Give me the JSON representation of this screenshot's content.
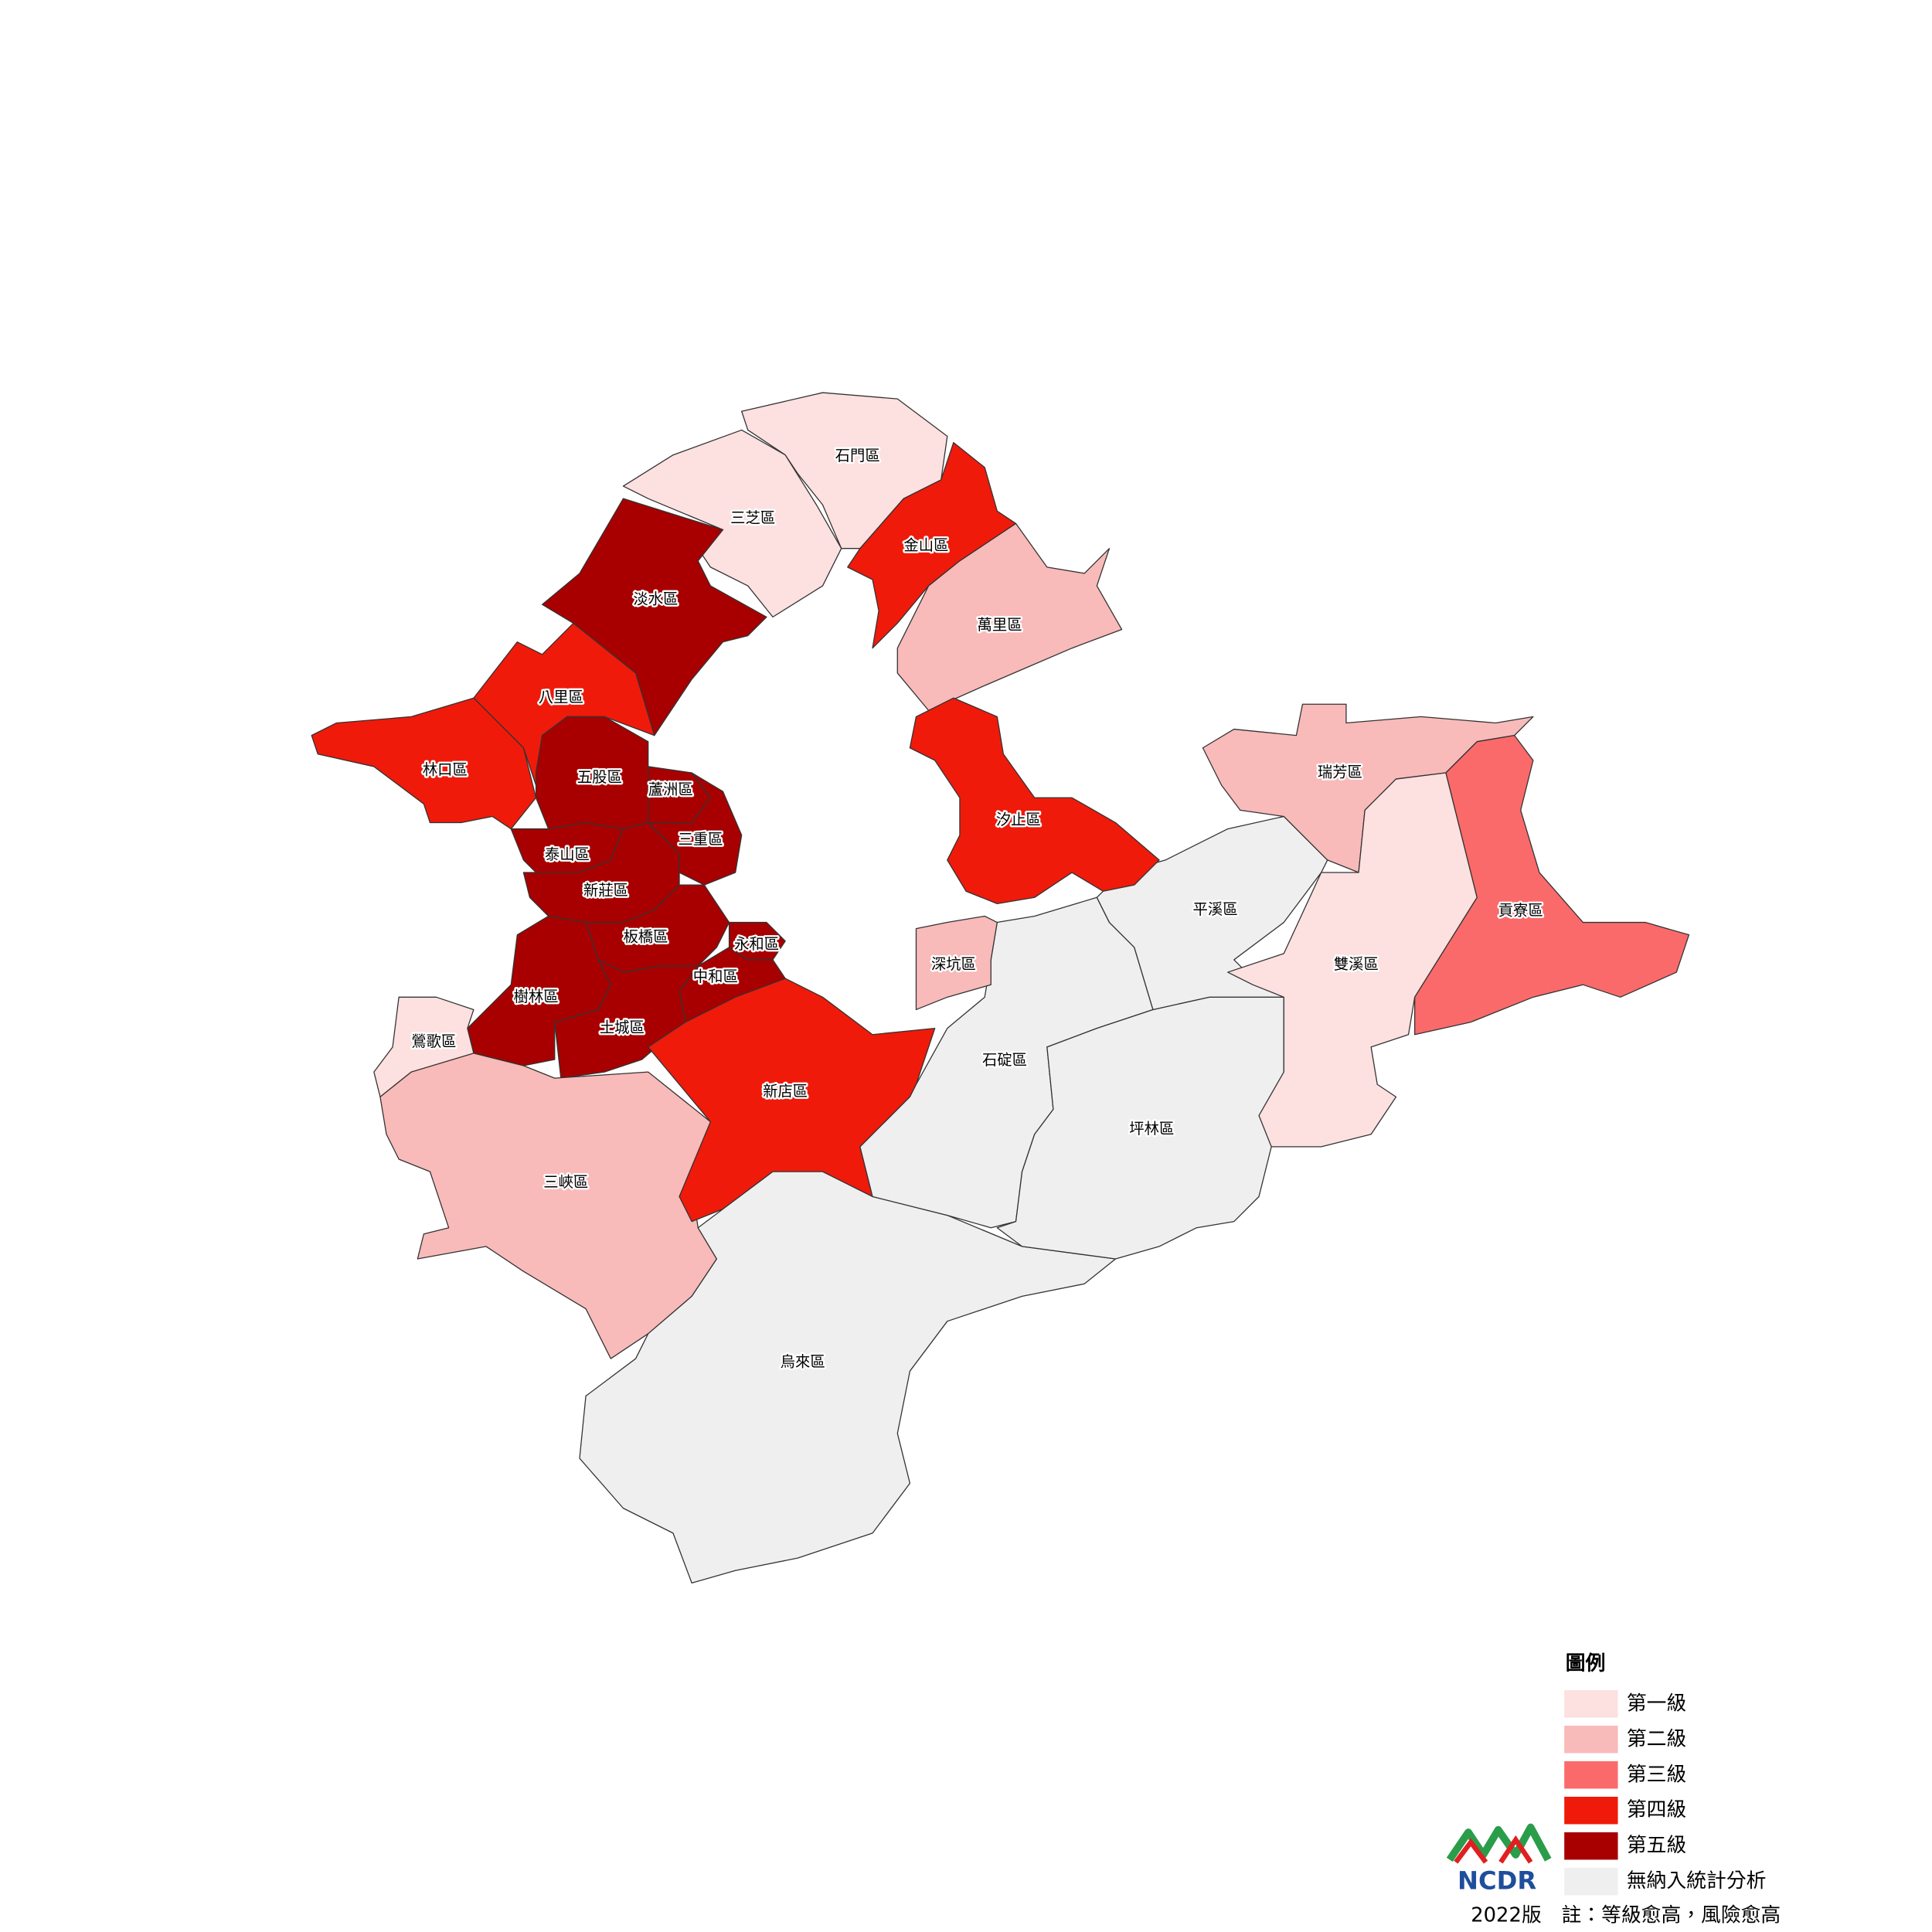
{
  "districts": [
    {
      "name": "石門區",
      "level": 1
    },
    {
      "name": "三芝區",
      "level": 1
    },
    {
      "name": "淡水區",
      "level": 5
    },
    {
      "name": "金山區",
      "level": 4
    },
    {
      "name": "萬里區",
      "level": 2
    },
    {
      "name": "八里區",
      "level": 4
    },
    {
      "name": "林口區",
      "level": 4
    },
    {
      "name": "五股區",
      "level": 5
    },
    {
      "name": "蘆洲區",
      "level": 5
    },
    {
      "name": "三重區",
      "level": 5
    },
    {
      "name": "泰山區",
      "level": 5
    },
    {
      "name": "新莊區",
      "level": 5
    },
    {
      "name": "板橋區",
      "level": 5
    },
    {
      "name": "永和區",
      "level": 5
    },
    {
      "name": "中和區",
      "level": 5
    },
    {
      "name": "樹林區",
      "level": 5
    },
    {
      "name": "土城區",
      "level": 5
    },
    {
      "name": "鶯歌區",
      "level": 1
    },
    {
      "name": "三峽區",
      "level": 2
    },
    {
      "name": "新店區",
      "level": 4
    },
    {
      "name": "烏來區",
      "level": null
    },
    {
      "name": "石碇區",
      "level": null
    },
    {
      "name": "深坑區",
      "level": 2
    },
    {
      "name": "坪林區",
      "level": null
    },
    {
      "name": "平溪區",
      "level": null
    },
    {
      "name": "汐止區",
      "level": 4
    },
    {
      "name": "瑞芳區",
      "level": 2
    },
    {
      "name": "雙溪區",
      "level": 1
    },
    {
      "name": "貢寮區",
      "level": 3
    }
  ],
  "legend": {
    "title": "圖例",
    "items": [
      {
        "label": "第一級",
        "color": "#fde0e0"
      },
      {
        "label": "第二級",
        "color": "#f9baba"
      },
      {
        "label": "第三級",
        "color": "#fb6a6a"
      },
      {
        "label": "第四級",
        "color": "#f01a0a"
      },
      {
        "label": "第五級",
        "color": "#a80000"
      },
      {
        "label": "無納入統計分析",
        "color": "#efefef"
      }
    ]
  },
  "logo": "NCDR",
  "footnote": "2022版　註：等級愈高，風險愈高"
}
